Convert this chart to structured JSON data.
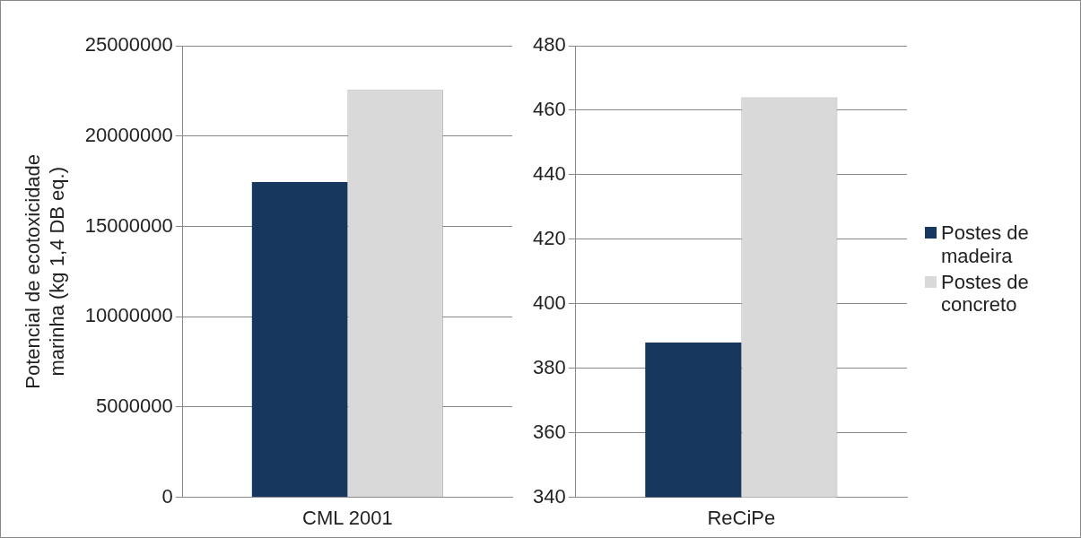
{
  "chart_data": [
    {
      "type": "bar",
      "ylabel": "Potencial de ecotoxicidade marinha (kg 1,4 DB eq.)",
      "categories": [
        "CML 2001"
      ],
      "series": [
        {
          "color": "#17375e",
          "values": [
            17450000
          ]
        },
        {
          "color": "#d9d9d9",
          "values": [
            22550000
          ]
        }
      ],
      "ylim": [
        0,
        25000000
      ],
      "yticks": [
        0,
        5000000,
        10000000,
        15000000,
        20000000,
        25000000
      ],
      "grid": "y",
      "legend": false
    },
    {
      "type": "bar",
      "categories": [
        "ReCiPe"
      ],
      "series": [
        {
          "name": "Postes de madeira",
          "color": "#17375e",
          "values": [
            388
          ]
        },
        {
          "name": "Postes de concreto",
          "color": "#d9d9d9",
          "values": [
            464
          ]
        }
      ],
      "ylim": [
        340,
        480
      ],
      "yticks": [
        340,
        360,
        380,
        400,
        420,
        440,
        460,
        480
      ],
      "grid": "y",
      "legend": "right"
    }
  ]
}
